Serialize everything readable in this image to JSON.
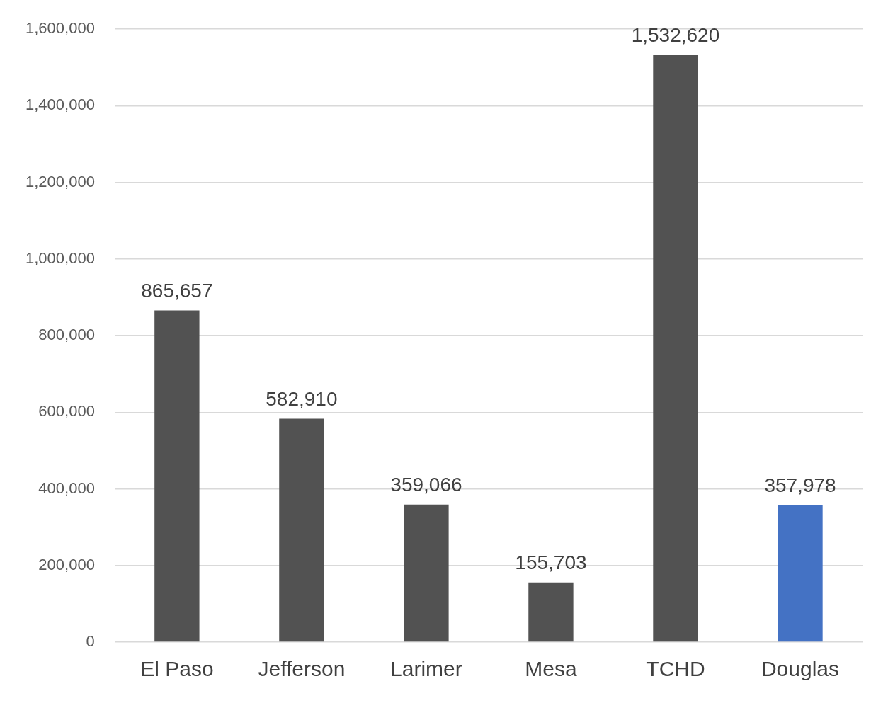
{
  "chart_data": {
    "type": "bar",
    "categories": [
      "El Paso",
      "Jefferson",
      "Larimer",
      "Mesa",
      "TCHD",
      "Douglas"
    ],
    "values": [
      865657,
      582910,
      359066,
      155703,
      1532620,
      357978
    ],
    "value_labels": [
      "865,657",
      "582,910",
      "359,066",
      "155,703",
      "1,532,620",
      "357,978"
    ],
    "colors": [
      "#525252",
      "#525252",
      "#525252",
      "#525252",
      "#525252",
      "#4472c4"
    ],
    "ylim": [
      0,
      1600000
    ],
    "yticks": [
      0,
      {
        "value": 200000,
        "label": "200,000"
      },
      {
        "value": 400000,
        "label": "400,000"
      },
      {
        "value": 600000,
        "label": "600,000"
      },
      {
        "value": 800000,
        "label": "800,000"
      },
      {
        "value": 1000000,
        "label": "1,000,000"
      },
      {
        "value": 1200000,
        "label": "1,200,000"
      },
      {
        "value": 1400000,
        "label": "1,400,000"
      },
      {
        "value": 1600000,
        "label": "1,600,000"
      }
    ],
    "grid": "y",
    "legend": false
  }
}
